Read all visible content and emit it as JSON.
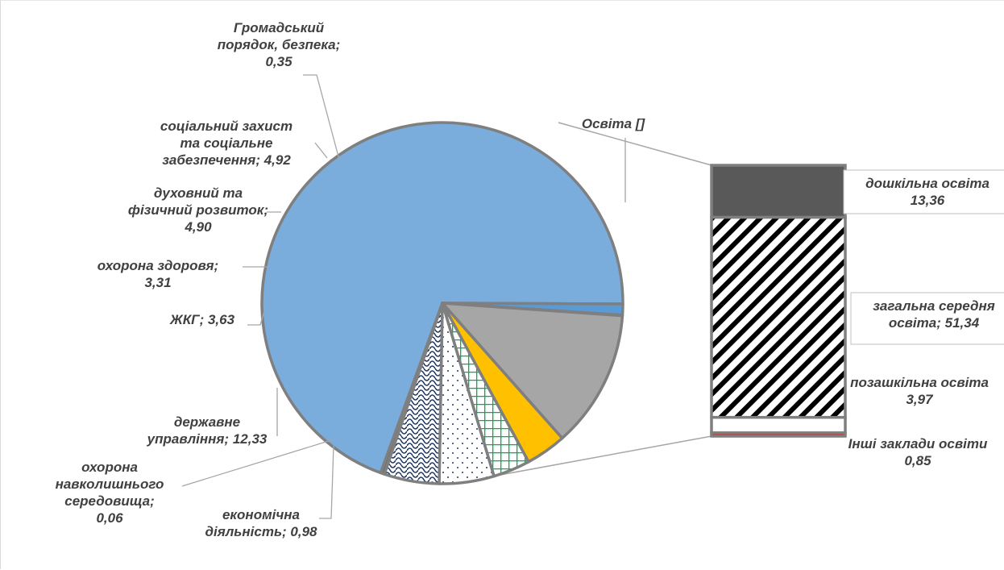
{
  "chart_data": {
    "type": "pie",
    "subtype": "bar-of-pie",
    "slices": [
      {
        "label_lines": [
          "Освіта []"
        ],
        "value": 69.52,
        "color": "#7aacdc",
        "pattern": "solid"
      },
      {
        "label_lines": [
          "економічна",
          "діяльність; 0,98"
        ],
        "value": 0.98,
        "color": "#5b9bd5",
        "pattern": "solid"
      },
      {
        "label_lines": [
          "охорона",
          "навколишнього",
          "середовища;",
          "0,06"
        ],
        "value": 0.06,
        "color": "#5b9bd5",
        "pattern": "solid"
      },
      {
        "label_lines": [
          "державне",
          "управління; 12,33"
        ],
        "value": 12.33,
        "color": "#a6a6a6",
        "pattern": "solid"
      },
      {
        "label_lines": [
          "ЖКГ; 3,63"
        ],
        "value": 3.63,
        "color": "#ffc000",
        "pattern": "solid"
      },
      {
        "label_lines": [
          "охорона здоровя;",
          "3,31"
        ],
        "value": 3.31,
        "color": "#00b050",
        "pattern": "grid"
      },
      {
        "label_lines": [
          "духовний та",
          "фізичний розвиток;",
          "4,90"
        ],
        "value": 4.9,
        "color": "#203864",
        "pattern": "dots"
      },
      {
        "label_lines": [
          "соціальний захист",
          "та соціальне",
          "забезпечення; 4,92"
        ],
        "value": 4.92,
        "color": "#1f3864",
        "pattern": "scales"
      },
      {
        "label_lines": [
          "Громадський",
          "порядок, безпека;",
          "0,35"
        ],
        "value": 0.35,
        "color": "#767171",
        "pattern": "solid"
      }
    ],
    "bar_breakdown": [
      {
        "label_lines": [
          "дошкільна освіта",
          "13,36"
        ],
        "value": 13.36,
        "color": "#595959",
        "pattern": "solid"
      },
      {
        "label_lines": [
          "загальна середня",
          "освіта; 51,34"
        ],
        "value": 51.34,
        "color": "#000000",
        "pattern": "diagonal-stripes"
      },
      {
        "label_lines": [
          "позашкільна освіта",
          "3,97"
        ],
        "value": 3.97,
        "color": "#ffffff",
        "pattern": "solid"
      },
      {
        "label_lines": [
          "Інші заклади освіти",
          "0,85"
        ],
        "value": 0.85,
        "color": "#ff0000",
        "pattern": "solid"
      }
    ],
    "legend": "none"
  }
}
